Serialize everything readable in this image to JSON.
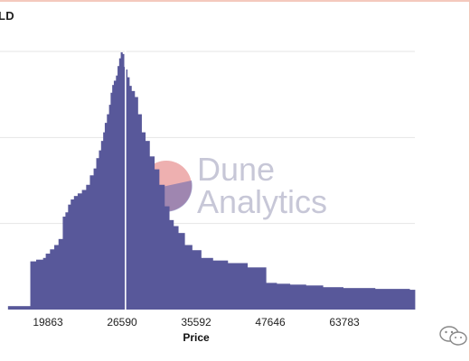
{
  "title": "LD",
  "watermark": {
    "line1": "Dune",
    "line2": "Analytics"
  },
  "colors": {
    "bar": "#58589a",
    "median_line": "#ffffff",
    "grid": "#e6e6e6",
    "watermark_red": "#e07070",
    "watermark_purple": "#6a6ab0"
  },
  "icons": {
    "wechat": "wechat-icon"
  },
  "chart_data": {
    "type": "area",
    "title": "",
    "xlabel": "Price",
    "ylabel": "",
    "xlim": [
      12000,
      90000
    ],
    "ylim": [
      0,
      3
    ],
    "grid": true,
    "tick_labels": [
      "19863",
      "26590",
      "35592",
      "47646",
      "63783"
    ],
    "median_line": 35592,
    "series": [
      {
        "values": [
          [
            13500,
            0.04
          ],
          [
            17700,
            0.56
          ],
          [
            18800,
            0.58
          ],
          [
            20100,
            0.6
          ],
          [
            20600,
            0.65
          ],
          [
            21400,
            0.7
          ],
          [
            22200,
            0.75
          ],
          [
            23000,
            0.82
          ],
          [
            23800,
            1.08
          ],
          [
            24300,
            1.13
          ],
          [
            24800,
            1.22
          ],
          [
            25300,
            1.28
          ],
          [
            25900,
            1.32
          ],
          [
            26600,
            1.35
          ],
          [
            27400,
            1.39
          ],
          [
            28200,
            1.45
          ],
          [
            28900,
            1.56
          ],
          [
            29600,
            1.64
          ],
          [
            30100,
            1.76
          ],
          [
            30600,
            1.85
          ],
          [
            31000,
            1.96
          ],
          [
            31400,
            2.06
          ],
          [
            31700,
            2.17
          ],
          [
            32100,
            2.27
          ],
          [
            32500,
            2.38
          ],
          [
            32800,
            2.52
          ],
          [
            33100,
            2.61
          ],
          [
            33400,
            2.66
          ],
          [
            33800,
            2.72
          ],
          [
            34100,
            2.83
          ],
          [
            34400,
            2.92
          ],
          [
            34700,
            2.99
          ],
          [
            35000,
            2.97
          ],
          [
            35300,
            2.82
          ],
          [
            35600,
            2.79
          ],
          [
            35900,
            2.7
          ],
          [
            36300,
            2.6
          ],
          [
            36700,
            2.54
          ],
          [
            37300,
            2.47
          ],
          [
            37900,
            2.27
          ],
          [
            38600,
            2.06
          ],
          [
            39300,
            1.96
          ],
          [
            40100,
            1.78
          ],
          [
            41000,
            1.63
          ],
          [
            41900,
            1.45
          ],
          [
            42900,
            1.2
          ],
          [
            43800,
            1.04
          ],
          [
            44600,
            0.97
          ],
          [
            45500,
            0.89
          ],
          [
            46700,
            0.75
          ],
          [
            48100,
            0.69
          ],
          [
            49800,
            0.6
          ],
          [
            52000,
            0.57
          ],
          [
            54800,
            0.54
          ],
          [
            58500,
            0.49
          ],
          [
            62000,
            0.31
          ],
          [
            64000,
            0.3
          ],
          [
            66500,
            0.29
          ],
          [
            69500,
            0.28
          ],
          [
            72700,
            0.26
          ],
          [
            76500,
            0.25
          ],
          [
            82500,
            0.24
          ],
          [
            89000,
            0.23
          ]
        ]
      }
    ]
  }
}
